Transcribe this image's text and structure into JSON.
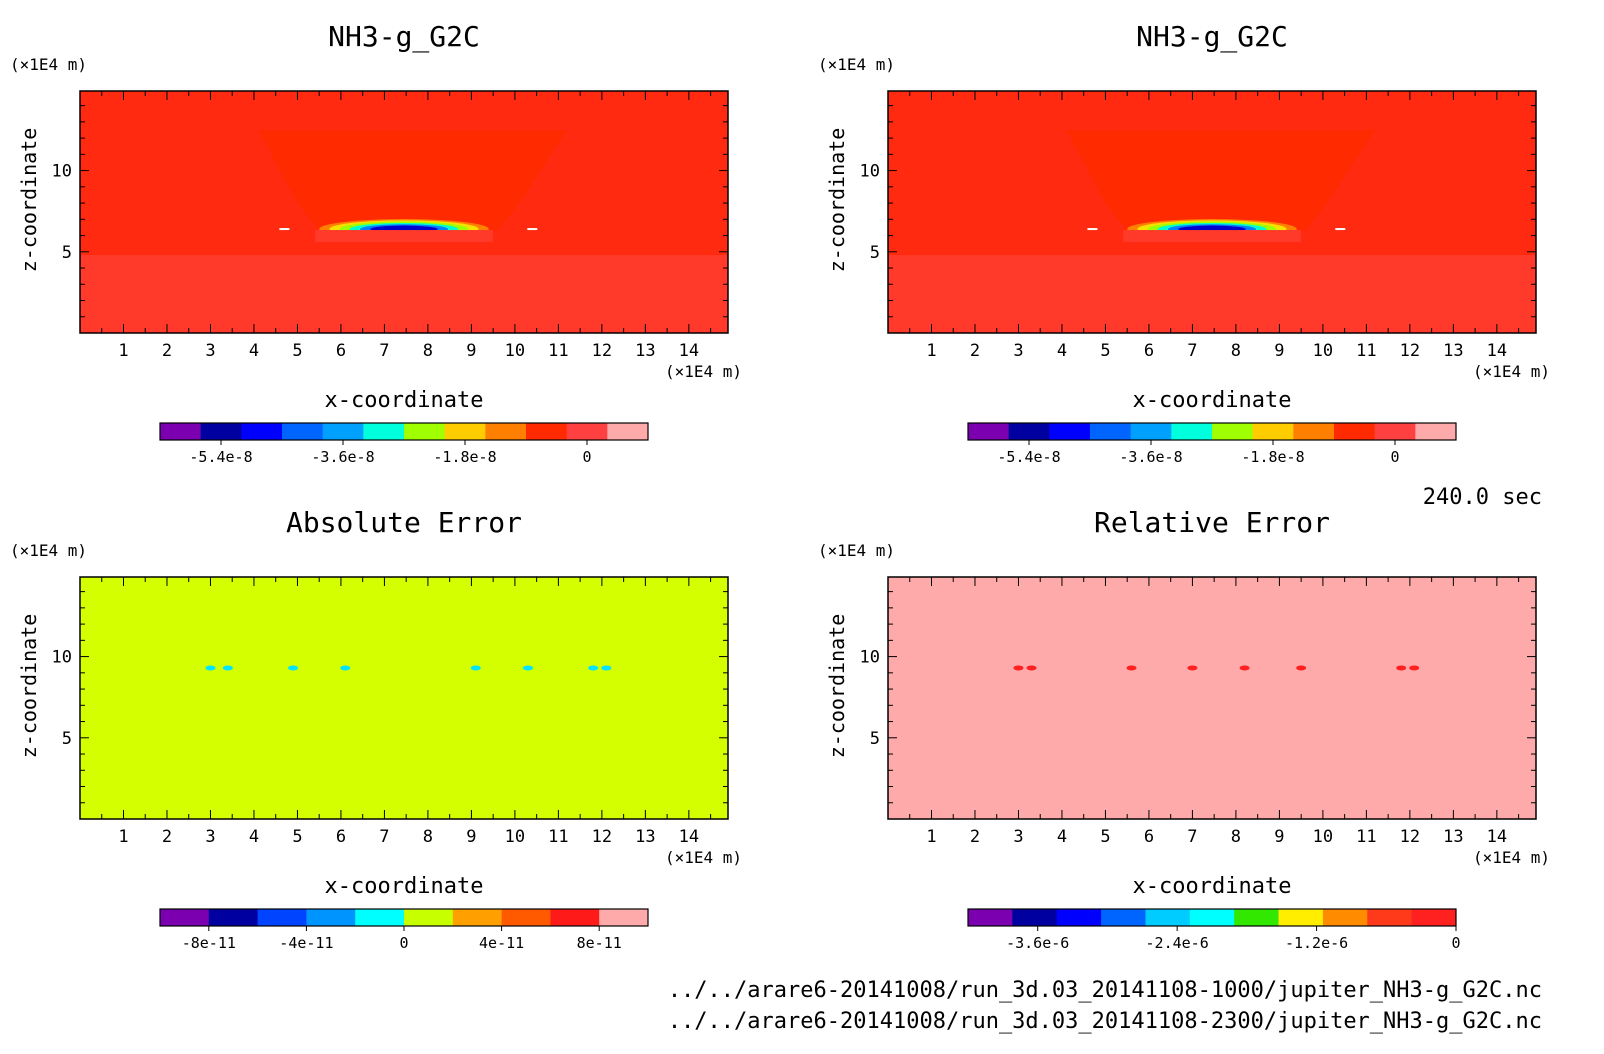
{
  "chart_data": [
    {
      "type": "heatmap",
      "title": "NH3-g_G2C",
      "xlabel": "x-coordinate",
      "ylabel": "z-coordinate",
      "x_unit": "(×1E4 m)",
      "y_unit": "(×1E4 m)",
      "xlim": [
        0,
        14.9
      ],
      "ylim": [
        0,
        14.9
      ],
      "xticks": [
        1,
        2,
        3,
        4,
        5,
        6,
        7,
        8,
        9,
        10,
        11,
        12,
        13,
        14
      ],
      "yticks": [
        5,
        10
      ],
      "background_color": "#ff3a2a",
      "field": {
        "kind": "plume",
        "base_color": "#ff3a2a",
        "upper_color": "#ff2a10",
        "plume_level": 6.4,
        "plume_x": [
          5.5,
          9.4
        ],
        "core_colors": [
          "#ff8000",
          "#f5e000",
          "#a0ff00",
          "#00ffcc",
          "#0080ff",
          "#0000cc"
        ]
      },
      "colorbar": {
        "colors": [
          "#7a00b0",
          "#0000a0",
          "#0000ff",
          "#0064ff",
          "#00a0ff",
          "#00ffdd",
          "#a0ff00",
          "#ffcc00",
          "#ff8000",
          "#ff2a00",
          "#ff4040",
          "#ffaaaa"
        ],
        "tick_labels": [
          "-5.4e-8",
          "-3.6e-8",
          "-1.8e-8",
          "0"
        ],
        "tick_values": [
          -5.4e-08,
          -3.6e-08,
          -1.8e-08,
          0
        ],
        "range": [
          -6.3e-08,
          9e-09
        ]
      }
    },
    {
      "type": "heatmap",
      "title": "NH3-g_G2C",
      "xlabel": "x-coordinate",
      "ylabel": "z-coordinate",
      "x_unit": "(×1E4 m)",
      "y_unit": "(×1E4 m)",
      "xlim": [
        0,
        14.9
      ],
      "ylim": [
        0,
        14.9
      ],
      "xticks": [
        1,
        2,
        3,
        4,
        5,
        6,
        7,
        8,
        9,
        10,
        11,
        12,
        13,
        14
      ],
      "yticks": [
        5,
        10
      ],
      "background_color": "#ff3a2a",
      "field": {
        "kind": "plume",
        "base_color": "#ff3a2a",
        "upper_color": "#ff2a10",
        "plume_level": 6.4,
        "plume_x": [
          5.5,
          9.4
        ],
        "core_colors": [
          "#ff8000",
          "#f5e000",
          "#a0ff00",
          "#00ffcc",
          "#0080ff",
          "#0000cc"
        ]
      },
      "colorbar": {
        "colors": [
          "#7a00b0",
          "#0000a0",
          "#0000ff",
          "#0064ff",
          "#00a0ff",
          "#00ffdd",
          "#a0ff00",
          "#ffcc00",
          "#ff8000",
          "#ff2a00",
          "#ff4040",
          "#ffaaaa"
        ],
        "tick_labels": [
          "-5.4e-8",
          "-3.6e-8",
          "-1.8e-8",
          "0"
        ],
        "tick_values": [
          -5.4e-08,
          -3.6e-08,
          -1.8e-08,
          0
        ],
        "range": [
          -6.3e-08,
          9e-09
        ]
      }
    },
    {
      "type": "heatmap",
      "title": "Absolute Error",
      "xlabel": "x-coordinate",
      "ylabel": "z-coordinate",
      "x_unit": "(×1E4 m)",
      "y_unit": "(×1E4 m)",
      "xlim": [
        0,
        14.9
      ],
      "ylim": [
        0,
        14.9
      ],
      "xticks": [
        1,
        2,
        3,
        4,
        5,
        6,
        7,
        8,
        9,
        10,
        11,
        12,
        13,
        14
      ],
      "yticks": [
        5,
        10
      ],
      "background_color": "#d4ff00",
      "field": {
        "kind": "spots",
        "spot_color": "#00e5ff",
        "spot_z": 9.3,
        "spot_x": [
          3.0,
          3.4,
          4.9,
          6.1,
          9.1,
          10.3,
          11.8,
          12.1
        ]
      },
      "colorbar": {
        "colors": [
          "#7a00b0",
          "#0000a0",
          "#0044ff",
          "#0094ff",
          "#00ffff",
          "#c8ff00",
          "#ffa000",
          "#ff5a00",
          "#ff1a1a",
          "#ffaaaa"
        ],
        "tick_labels": [
          "-8e-11",
          "-4e-11",
          "0",
          "4e-11",
          "8e-11"
        ],
        "tick_values": [
          -8e-11,
          -4e-11,
          0,
          4e-11,
          8e-11
        ],
        "range": [
          -1e-10,
          1e-10
        ]
      }
    },
    {
      "type": "heatmap",
      "title": "Relative Error",
      "xlabel": "x-coordinate",
      "ylabel": "z-coordinate",
      "x_unit": "(×1E4 m)",
      "y_unit": "(×1E4 m)",
      "xlim": [
        0,
        14.9
      ],
      "ylim": [
        0,
        14.9
      ],
      "xticks": [
        1,
        2,
        3,
        4,
        5,
        6,
        7,
        8,
        9,
        10,
        11,
        12,
        13,
        14
      ],
      "yticks": [
        5,
        10
      ],
      "background_color": "#ffaaaa",
      "field": {
        "kind": "spots",
        "spot_color": "#ff2020",
        "spot_z": 9.3,
        "spot_x": [
          3.0,
          3.3,
          5.6,
          7.0,
          8.2,
          9.5,
          11.8,
          12.1
        ]
      },
      "colorbar": {
        "colors": [
          "#7a00b0",
          "#0000a0",
          "#0000ff",
          "#0064ff",
          "#00ccff",
          "#00ffff",
          "#33e800",
          "#ffee00",
          "#ff8c00",
          "#ff3a1a",
          "#ff2020"
        ],
        "tick_labels": [
          "-3.6e-6",
          "-2.4e-6",
          "-1.2e-6",
          "0"
        ],
        "tick_values": [
          -3.6e-06,
          -2.4e-06,
          -1.2e-06,
          0
        ],
        "range": [
          -4.2e-06,
          0
        ]
      }
    }
  ],
  "time_label": "240.0 sec",
  "files": [
    "../../arare6-20141008/run_3d.03_20141108-1000/jupiter_NH3-g_G2C.nc",
    "../../arare6-20141008/run_3d.03_20141108-2300/jupiter_NH3-g_G2C.nc"
  ]
}
